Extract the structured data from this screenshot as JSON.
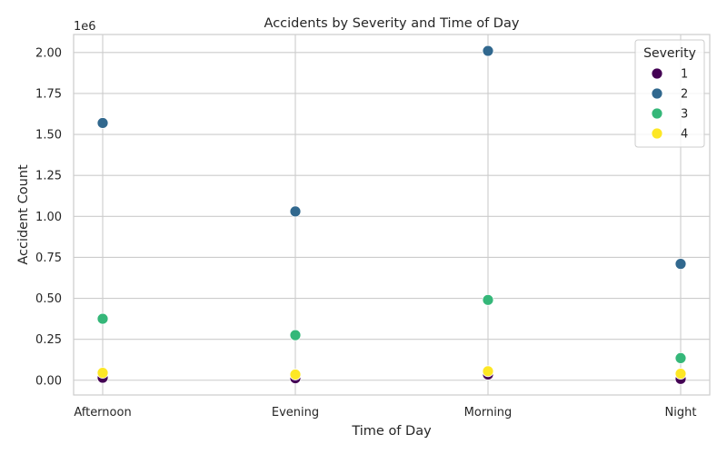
{
  "chart_data": {
    "type": "scatter",
    "title": "Accidents by Severity and Time of Day",
    "xlabel": "Time of Day",
    "ylabel": "Accident Count",
    "y_offset_label": "1e6",
    "categories": [
      "Afternoon",
      "Evening",
      "Morning",
      "Night"
    ],
    "ylim": [
      -90000,
      2110000
    ],
    "y_ticks": [
      0,
      250000,
      500000,
      750000,
      1000000,
      1250000,
      1500000,
      1750000,
      2000000
    ],
    "y_tick_labels": [
      "0.00",
      "0.25",
      "0.50",
      "0.75",
      "1.00",
      "1.25",
      "1.50",
      "1.75",
      "2.00"
    ],
    "grid": true,
    "legend": {
      "title": "Severity",
      "placement": "top-right"
    },
    "series": [
      {
        "name": "1",
        "color": "#440154",
        "values": [
          15000,
          12000,
          35000,
          8000
        ]
      },
      {
        "name": "2",
        "color": "#31688e",
        "values": [
          1570000,
          1030000,
          2010000,
          710000
        ]
      },
      {
        "name": "3",
        "color": "#35b779",
        "values": [
          375000,
          275000,
          490000,
          135000
        ]
      },
      {
        "name": "4",
        "color": "#fde725",
        "values": [
          45000,
          35000,
          55000,
          40000
        ]
      }
    ]
  }
}
